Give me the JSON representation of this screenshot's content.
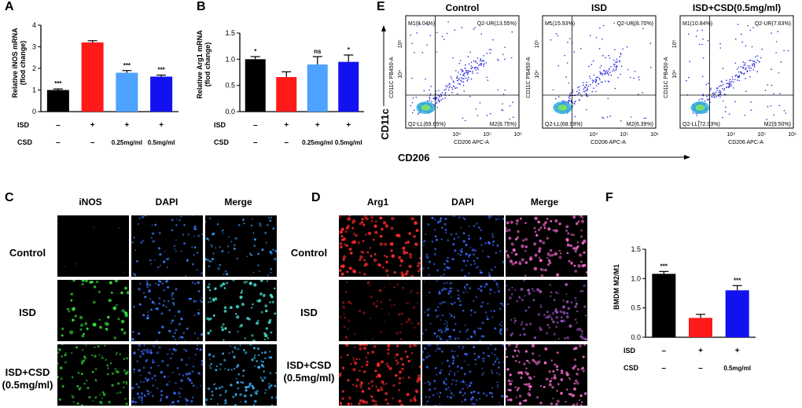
{
  "colors": {
    "black": "#000000",
    "red": "#ff1a1a",
    "lightblue": "#4da3ff",
    "blue": "#1212f0"
  },
  "panel_letters": [
    "A",
    "B",
    "C",
    "D",
    "E",
    "F"
  ],
  "chart_data": [
    {
      "id": "A",
      "type": "bar",
      "categories": [
        "ISD- CSD-",
        "ISD+ CSD-",
        "ISD+ CSD 0.25mg/ml",
        "ISD+ CSD 0.5mg/ml"
      ],
      "values": [
        1.0,
        3.2,
        1.8,
        1.62
      ],
      "errors": [
        0.05,
        0.08,
        0.1,
        0.07
      ],
      "sig": [
        "***",
        "",
        "***",
        "***"
      ],
      "colors": [
        "#000000",
        "#ff1a1a",
        "#4da3ff",
        "#1212f0"
      ],
      "ylabel": "Relative iNOS mRNA (flod change)",
      "ylabel_lines": [
        "Relative iNOS mRNA",
        "(flod change)"
      ],
      "ylim": [
        0,
        4
      ],
      "ticks": [
        "0",
        "1",
        "2",
        "3",
        "4"
      ],
      "row_labels": [
        "ISD",
        "CSD"
      ],
      "isd": [
        "–",
        "+",
        "+",
        "+"
      ],
      "csd": [
        "–",
        "–",
        "0.25mg/ml",
        "0.5mg/ml"
      ]
    },
    {
      "id": "B",
      "type": "bar",
      "categories": [
        "ISD- CSD-",
        "ISD+ CSD-",
        "ISD+ CSD 0.25mg/ml",
        "ISD+ CSD 0.5mg/ml"
      ],
      "values": [
        1.0,
        0.66,
        0.9,
        0.95
      ],
      "errors": [
        0.05,
        0.1,
        0.15,
        0.13
      ],
      "sig": [
        "*",
        "",
        "ns",
        "*"
      ],
      "colors": [
        "#000000",
        "#ff1a1a",
        "#4da3ff",
        "#1212f0"
      ],
      "ylabel": "Relative Arg1 mRNA (flod change)",
      "ylabel_lines": [
        "Relative Arg1 mRNA",
        "(flod change)"
      ],
      "ylim": [
        0,
        1.5
      ],
      "ticks": [
        "0.0",
        "0.5",
        "1.0",
        "1.5"
      ],
      "row_labels": [
        "ISD",
        "CSD"
      ],
      "isd": [
        "–",
        "+",
        "+",
        "+"
      ],
      "csd": [
        "–",
        "–",
        "0.25mg/ml",
        "0.5mg/ml"
      ]
    },
    {
      "id": "F",
      "type": "bar",
      "categories": [
        "ISD- CSD-",
        "ISD+ CSD-",
        "ISD+ CSD 0.5mg/ml"
      ],
      "values": [
        1.08,
        0.33,
        0.8
      ],
      "errors": [
        0.04,
        0.06,
        0.08
      ],
      "sig": [
        "***",
        "",
        "***"
      ],
      "colors": [
        "#000000",
        "#ff1a1a",
        "#1212f0"
      ],
      "ylabel": "BMDM M2/M1",
      "ylim": [
        0,
        1.5
      ],
      "ticks": [
        "0.0",
        "0.5",
        "1.0",
        "1.5"
      ],
      "row_labels": [
        "ISD",
        "CSD"
      ],
      "isd": [
        "–",
        "+",
        "+"
      ],
      "csd": [
        "–",
        "–",
        "0.5mg/ml"
      ]
    },
    {
      "id": "E",
      "type": "scatter",
      "titles": [
        "Control",
        "ISD",
        "ISD+CSD(0.5mg/ml)"
      ],
      "quadrants": [
        {
          "m1": "M1(8.04%)",
          "ur": "Q2-UR(13.55%)",
          "ll": "Q2-LL(69.65%)",
          "m2": "M2(8.75%)"
        },
        {
          "m1": "M1(15.93%)",
          "ur": "Q2-UR(8.70%)",
          "ll": "Q2-LL(68.99%)",
          "m2": "M2(6.39%)"
        },
        {
          "m1": "M1(10.84%)",
          "ur": "Q2-UR(7.63%)",
          "ll": "Q2-LL(72.03%)",
          "m2": "M2(9.50%)"
        }
      ],
      "xaxis_label": "CD206 APC-A",
      "yaxis_label": "CD11C PB450-A",
      "xticks": [
        "10⁴",
        "10⁵",
        "10⁶"
      ],
      "yticks": [
        "10⁴",
        "10⁵"
      ],
      "big_x": "CD206",
      "big_y": "CD11c"
    }
  ],
  "panel_c": {
    "columns": [
      "iNOS",
      "DAPI",
      "Merge"
    ],
    "rows": [
      "Control",
      "ISD",
      "ISD+CSD",
      "(0.5mg/ml)"
    ]
  },
  "panel_d": {
    "columns": [
      "Arg1",
      "DAPI",
      "Merge"
    ],
    "rows": [
      "Control",
      "ISD",
      "ISD+CSD",
      "(0.5mg/ml)"
    ]
  }
}
